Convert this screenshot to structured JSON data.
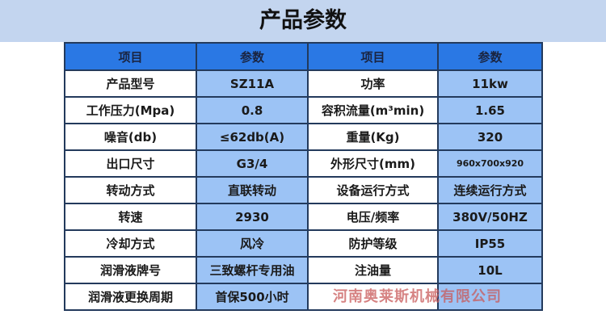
{
  "title": "产品参数",
  "header": [
    "项目",
    "参数",
    "项目",
    "参数"
  ],
  "rows": [
    [
      "产品型号",
      "SZ11A",
      "功率",
      "11kw"
    ],
    [
      "工作压力(Mpa)",
      "0.8",
      "容积流量(m³min)",
      "1.65"
    ],
    [
      "噪音(db)",
      "≤62db(A)",
      "重量(Kg)",
      "320"
    ],
    [
      "出口尺寸",
      "G3/4",
      "外形尺寸(mm)",
      "960x700x920"
    ],
    [
      "转动方式",
      "直联转动",
      "设备运行方式",
      "连续运行方式"
    ],
    [
      "转速",
      "2930",
      "电压/频率",
      "380V/50HZ"
    ],
    [
      "冷却方式",
      "风冷",
      "防护等级",
      "IP55"
    ],
    [
      "润滑液牌号",
      "三致螺杆专用油",
      "注油量",
      "10L"
    ],
    [
      "润滑液更换周期",
      "首保500小时",
      "",
      ""
    ]
  ],
  "watermark": "河南奥莱斯机械有限公司",
  "colors": {
    "band": "#c3d5ef",
    "header": "#2a78e4",
    "value_cell": "#9cc3f5",
    "border": "#233a5c"
  }
}
